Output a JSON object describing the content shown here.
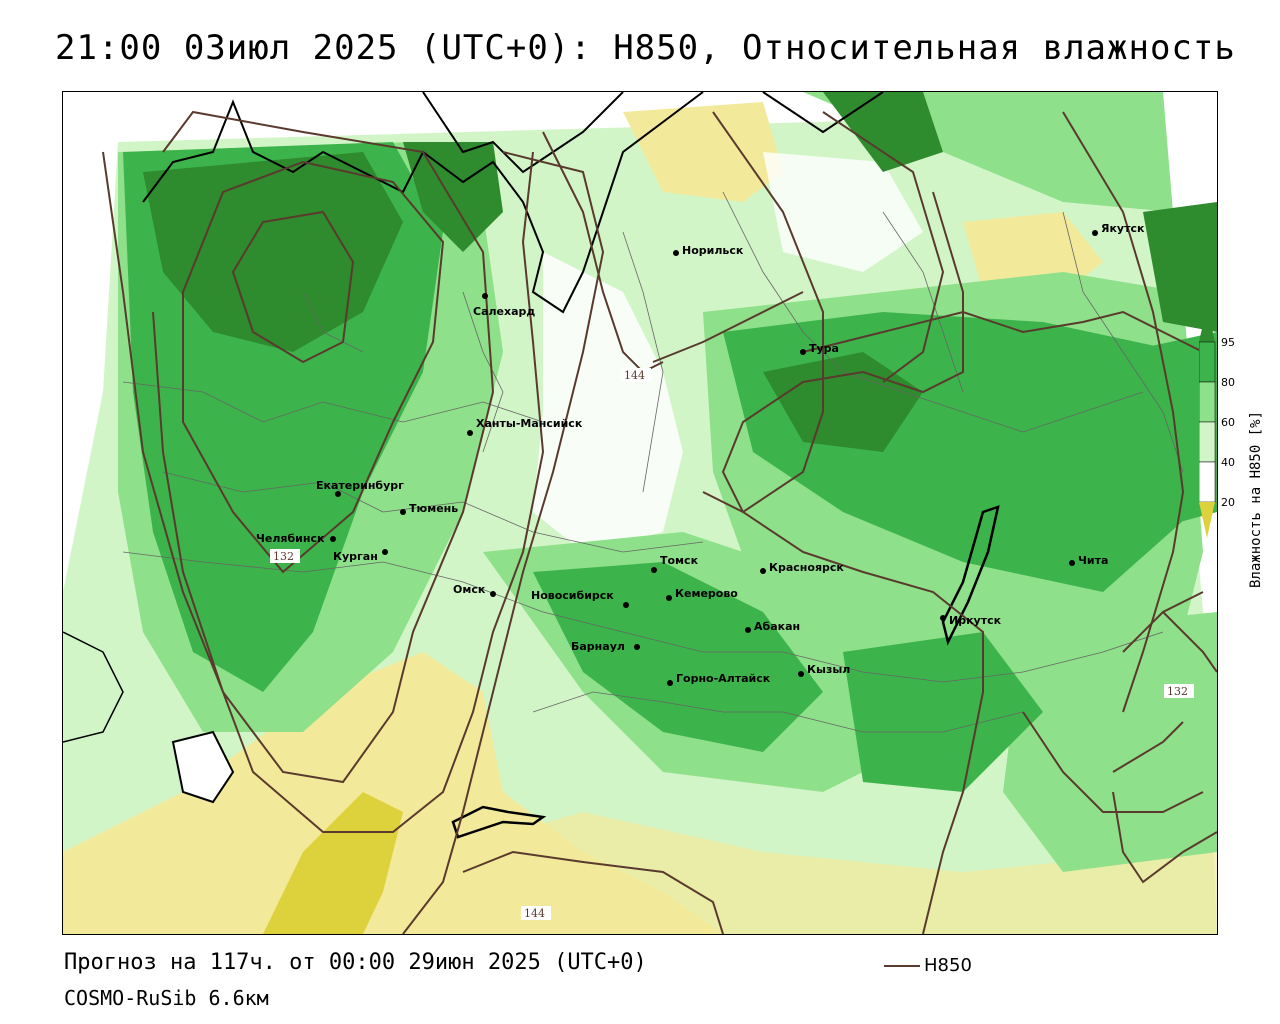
{
  "title": "21:00 03июл 2025 (UTC+0): H850, Относительная влажность",
  "footer": {
    "forecast": "Прогноз на 117ч. от 00:00 29июн 2025 (UTC+0)",
    "model": "COSMO-RuSib 6.6км"
  },
  "legend": {
    "contour_label": "H850"
  },
  "colorbar": {
    "axis_label": "Влажность на H850 [%]",
    "ticks": [
      "95",
      "80",
      "60",
      "40",
      "20"
    ],
    "colors": {
      "95plus": "#2e8b2e",
      "80_95": "#3cb44b",
      "60_80": "#8fe08a",
      "40_60": "#d2f5c8",
      "20_40": "#ffffff",
      "0_20": "#f2ea9a",
      "below": "#ddd23c"
    }
  },
  "cities": [
    {
      "name": "Норильск"
    },
    {
      "name": "Якутск"
    },
    {
      "name": "Салехард"
    },
    {
      "name": "Тура"
    },
    {
      "name": "Ханты-Мансийск"
    },
    {
      "name": "Екатеринбург"
    },
    {
      "name": "Тюмень"
    },
    {
      "name": "Челябинск"
    },
    {
      "name": "Курган"
    },
    {
      "name": "Омск"
    },
    {
      "name": "Томск"
    },
    {
      "name": "Красноярск"
    },
    {
      "name": "Новосибирск"
    },
    {
      "name": "Кемерово"
    },
    {
      "name": "Барнаул"
    },
    {
      "name": "Абакан"
    },
    {
      "name": "Иркутск"
    },
    {
      "name": "Чита"
    },
    {
      "name": "Кызыл"
    },
    {
      "name": "Горно-Алтайск"
    }
  ],
  "contour_labels": [
    "144",
    "132",
    "132",
    "144"
  ]
}
